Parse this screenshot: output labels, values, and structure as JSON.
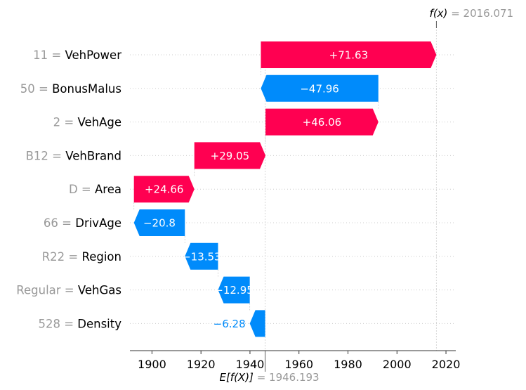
{
  "chart_data": {
    "type": "waterfall",
    "base_value": 1946.193,
    "output_value": 2016.071,
    "base_label": "E[f(X)]",
    "base_value_text": "1946.193",
    "output_label": "f(x)",
    "output_value_text": "2016.071",
    "features": [
      {
        "value": "11",
        "name": "VehPower",
        "contribution": 71.63,
        "label": "+71.63"
      },
      {
        "value": "50",
        "name": "BonusMalus",
        "contribution": -47.96,
        "label": "−47.96"
      },
      {
        "value": "2",
        "name": "VehAge",
        "contribution": 46.06,
        "label": "+46.06"
      },
      {
        "value": "B12",
        "name": "VehBrand",
        "contribution": 29.05,
        "label": "+29.05"
      },
      {
        "value": "D",
        "name": "Area",
        "contribution": 24.66,
        "label": "+24.66"
      },
      {
        "value": "66",
        "name": "DrivAge",
        "contribution": -20.8,
        "label": "−20.8"
      },
      {
        "value": "R22",
        "name": "Region",
        "contribution": -13.53,
        "label": "−13.53"
      },
      {
        "value": "Regular",
        "name": "VehGas",
        "contribution": -12.95,
        "label": "−12.95"
      },
      {
        "value": "528",
        "name": "Density",
        "contribution": -6.28,
        "label": "−6.28"
      }
    ],
    "x_ticks": [
      1900,
      1920,
      1940,
      1960,
      1980,
      2000,
      2020
    ],
    "xlim": [
      1891,
      2024
    ],
    "colors": {
      "positive": "#ff0051",
      "negative": "#008bfb",
      "feature_value": "#999999",
      "grid": "#cccccc"
    }
  }
}
